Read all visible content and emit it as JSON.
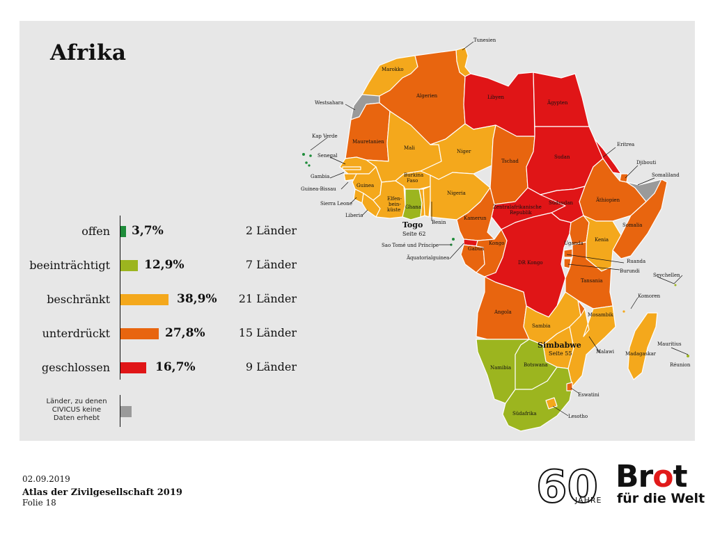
{
  "title": "Afrika",
  "colors": {
    "offen": "#1e8c3a",
    "beeintraechtigt": "#9cb51f",
    "beschraenkt": "#f4a81c",
    "unterdrueckt": "#e8650f",
    "geschlossen": "#e01517",
    "keine_daten": "#9a9a9a",
    "panel": "#e7e7e7"
  },
  "legend": {
    "categories": [
      {
        "label": "offen",
        "percent": "3,7%",
        "value": 3.7,
        "count": "2 Länder"
      },
      {
        "label": "beeinträchtigt",
        "percent": "12,9%",
        "value": 12.9,
        "count": "7 Länder"
      },
      {
        "label": "beschränkt",
        "percent": "38,9%",
        "value": 38.9,
        "count": "21 Länder"
      },
      {
        "label": "unterdrückt",
        "percent": "27,8%",
        "value": 27.8,
        "count": "15 Länder"
      },
      {
        "label": "geschlossen",
        "percent": "16,7%",
        "value": 16.7,
        "count": "9 Länder"
      }
    ],
    "no_data_label": "Länder, zu denen CIVICUS keine Daten erhebt"
  },
  "map": {
    "countries": {
      "tunesien": "Tunesien",
      "marokko": "Marokko",
      "algerien": "Algerien",
      "libyen": "Libyen",
      "aegypten": "Ägypten",
      "westsahara": "Westsahara",
      "kapverde": "Kap Verde",
      "mauretanien": "Mauretanien",
      "mali": "Mali",
      "niger": "Niger",
      "tschad": "Tschad",
      "sudan": "Sudan",
      "eritrea": "Eritrea",
      "senegal": "Senegal",
      "djibouti": "Djibouti",
      "somaliland": "Somaliland",
      "gambia": "Gambia",
      "burkina": "Burkina Faso",
      "guinea_bissau": "Guinea-Bissau",
      "guinea": "Guinea",
      "nigeria": "Nigeria",
      "suedsudan": "Südsudan",
      "aethiopien": "Äthiopien",
      "sierra_leone": "Sierra Leone",
      "elfenbein": "Elfen-bein-küste",
      "ghana": "Ghana",
      "zar": "Zentralafrikanische Republik",
      "somalia": "Somalia",
      "liberia": "Liberia",
      "togo": "Togo",
      "benin": "Benin",
      "kamerun": "Kamerun",
      "sao_tome": "Sao Tomé und Príncipe",
      "uganda": "Uganda",
      "kenia": "Kenia",
      "gabun": "Gabun",
      "kongo": "Kongo",
      "aequatorialguinea": "Äquatorialguinea",
      "drkongo": "DR Kongo",
      "ruanda": "Ruanda",
      "burundi": "Burundi",
      "seychellen": "Seychellen",
      "tansania": "Tansania",
      "komoren": "Komoren",
      "angola": "Angola",
      "mosambik": "Mosambik",
      "sambia": "Sambia",
      "simbabwe": "Simbabwe",
      "mauritius": "Mauritius",
      "malawi": "Malawi",
      "madagaskar": "Madagaskar",
      "reunion": "Réunion",
      "namibia": "Namibia",
      "botswana": "Botswana",
      "eswatini": "Eswatini",
      "suedafrika": "Südafrika",
      "lesotho": "Lesotho"
    },
    "togo_ref": "Seite 62",
    "simbabwe_ref": "Seite 55"
  },
  "footer": {
    "date": "02.09.2019",
    "publication": "Atlas der Zivilgesellschaft 2019",
    "slide": "Folie 18"
  },
  "logo": {
    "sixty": "60",
    "jahre": "JAHRE",
    "brot_pre": "Br",
    "brot_o": "o",
    "brot_post": "t",
    "fuer_die_welt": "für die Welt"
  }
}
